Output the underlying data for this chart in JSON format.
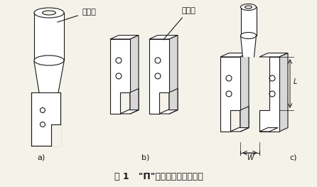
{
  "title": "图 1   \"Π\"形烙铁头制作示意图",
  "label_a": "a)",
  "label_b": "b)",
  "label_c": "c)",
  "label_zixieguan": "紫螺管",
  "label_zitongban": "紫铜板",
  "bg_color": "#f5f2ea",
  "line_color": "#1a1a1a",
  "fig_width": 4.46,
  "fig_height": 2.63,
  "dpi": 100
}
